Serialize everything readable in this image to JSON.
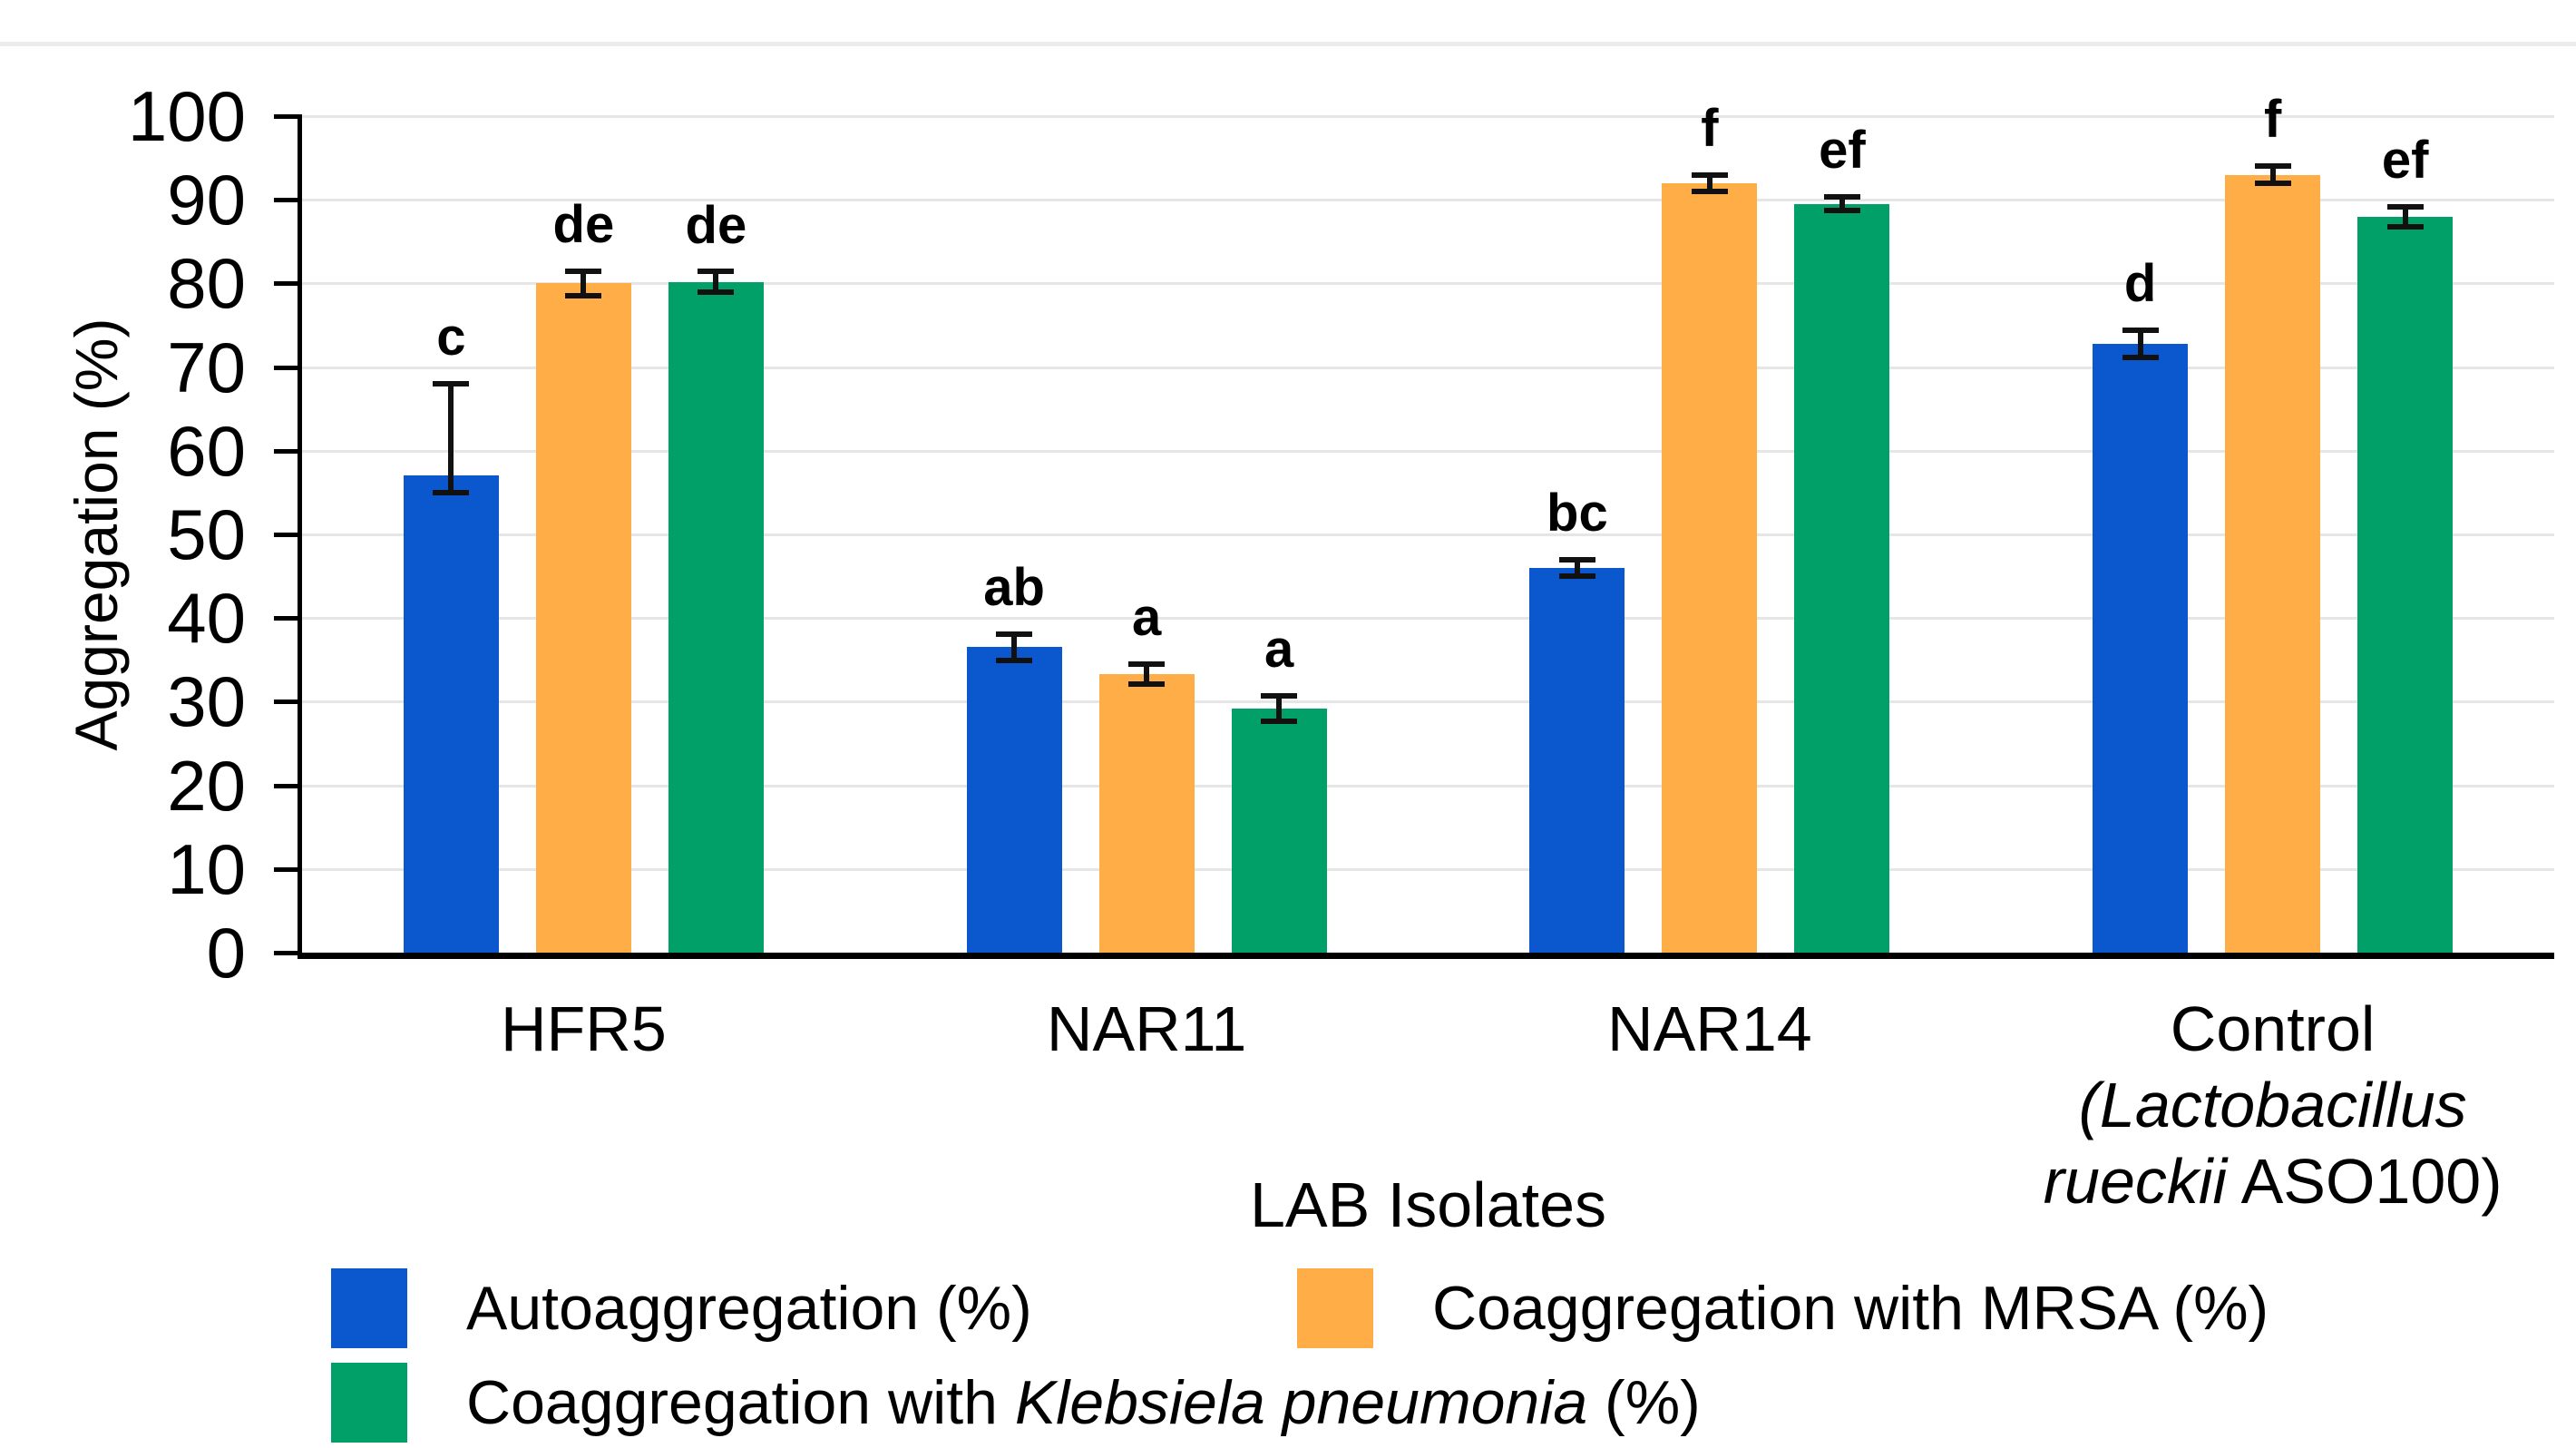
{
  "figure": {
    "background": "#ffffff",
    "top_divider_color": "#ececec"
  },
  "chart_data": {
    "type": "bar",
    "title": "",
    "xlabel": "LAB Isolates",
    "ylabel": "Aggregation (%)",
    "ylim": [
      0,
      100
    ],
    "ytick_step": 10,
    "yticks": [
      0,
      10,
      20,
      30,
      40,
      50,
      60,
      70,
      80,
      90,
      100
    ],
    "grid": true,
    "legend_position": "bottom",
    "axis_color": "#000000",
    "gridline_color": "#e6e6e6",
    "error_bar_color": "#111111",
    "categories": [
      "HFR5",
      "NAR11",
      "NAR14",
      "Control (Lactobacillus rueckii ASO100)"
    ],
    "category_label_lines": [
      [
        [
          {
            "t": "HFR5"
          }
        ]
      ],
      [
        [
          {
            "t": "NAR11"
          }
        ]
      ],
      [
        [
          {
            "t": "NAR14"
          }
        ]
      ],
      [
        [
          {
            "t": "Control"
          }
        ],
        [
          {
            "t": "(Lactobacillus",
            "i": true
          }
        ],
        [
          {
            "t": "rueckii",
            "i": true
          },
          {
            "t": " ASO100)"
          }
        ]
      ]
    ],
    "series": [
      {
        "name": "Autoaggregation (%)",
        "label_segments": [
          {
            "t": "Autoaggregation (%)"
          }
        ],
        "color": "#0b57ce",
        "values": [
          57,
          36.5,
          46,
          72.8
        ],
        "err_up": [
          11,
          1.6,
          1.0,
          1.6
        ],
        "err_down": [
          2,
          1.6,
          1.0,
          1.6
        ],
        "letters": [
          "c",
          "ab",
          "bc",
          "d"
        ]
      },
      {
        "name": "Coaggregation with MRSA (%)",
        "label_segments": [
          {
            "t": "Coaggregation with MRSA (%)"
          }
        ],
        "color": "#ffad47",
        "values": [
          80,
          33.3,
          92,
          93
        ],
        "err_up": [
          1.5,
          1.2,
          1.0,
          1.0
        ],
        "err_down": [
          1.5,
          1.2,
          1.0,
          1.0
        ],
        "letters": [
          "de",
          "a",
          "f",
          "f"
        ]
      },
      {
        "name": "Coaggregation with Klebsiela pneumonia (%)",
        "label_segments": [
          {
            "t": "Coaggregation with "
          },
          {
            "t": "Klebsiela pneumonia",
            "i": true
          },
          {
            "t": " (%)"
          }
        ],
        "color": "#00a068",
        "values": [
          80.2,
          29.2,
          89.5,
          88
        ],
        "err_up": [
          1.2,
          1.5,
          0.8,
          1.2
        ],
        "err_down": [
          1.2,
          1.5,
          0.8,
          1.2
        ],
        "letters": [
          "de",
          "a",
          "ef",
          "ef"
        ]
      }
    ]
  }
}
